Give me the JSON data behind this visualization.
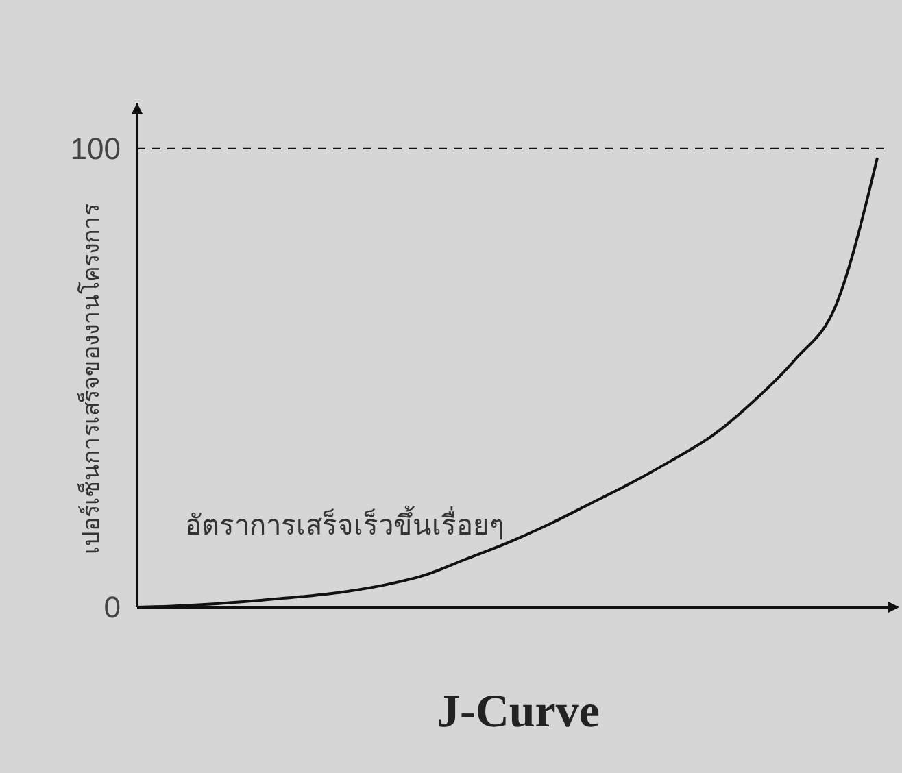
{
  "chart_data": {
    "type": "line",
    "title": "J-Curve",
    "ylabel": "เปอร์เซ็นการเสร็จของงานโครงการ",
    "annotations": [
      "อัตราการเสร็จเร็วขึ้นเรื่อยๆ"
    ],
    "categories": [
      null,
      null,
      null,
      null,
      null,
      null,
      null,
      null,
      null,
      null,
      null,
      null,
      null,
      null,
      null,
      null,
      null,
      null,
      null
    ],
    "series": [
      {
        "color": "#111111",
        "values": [
          0,
          0.3,
          0.8,
          1.5,
          2.3,
          3.3,
          4.8,
          7,
          10.5,
          14,
          18,
          22.5,
          27,
          32,
          37.5,
          45,
          54,
          66,
          98
        ]
      }
    ],
    "ylim": [
      0,
      110
    ],
    "yticks": [
      0,
      100
    ],
    "ref_lines": [
      {
        "axis": "y",
        "value": 100,
        "line_style": "dashed",
        "color": "#111111"
      }
    ],
    "marker": "none",
    "line_style": "solid",
    "grid": false
  }
}
